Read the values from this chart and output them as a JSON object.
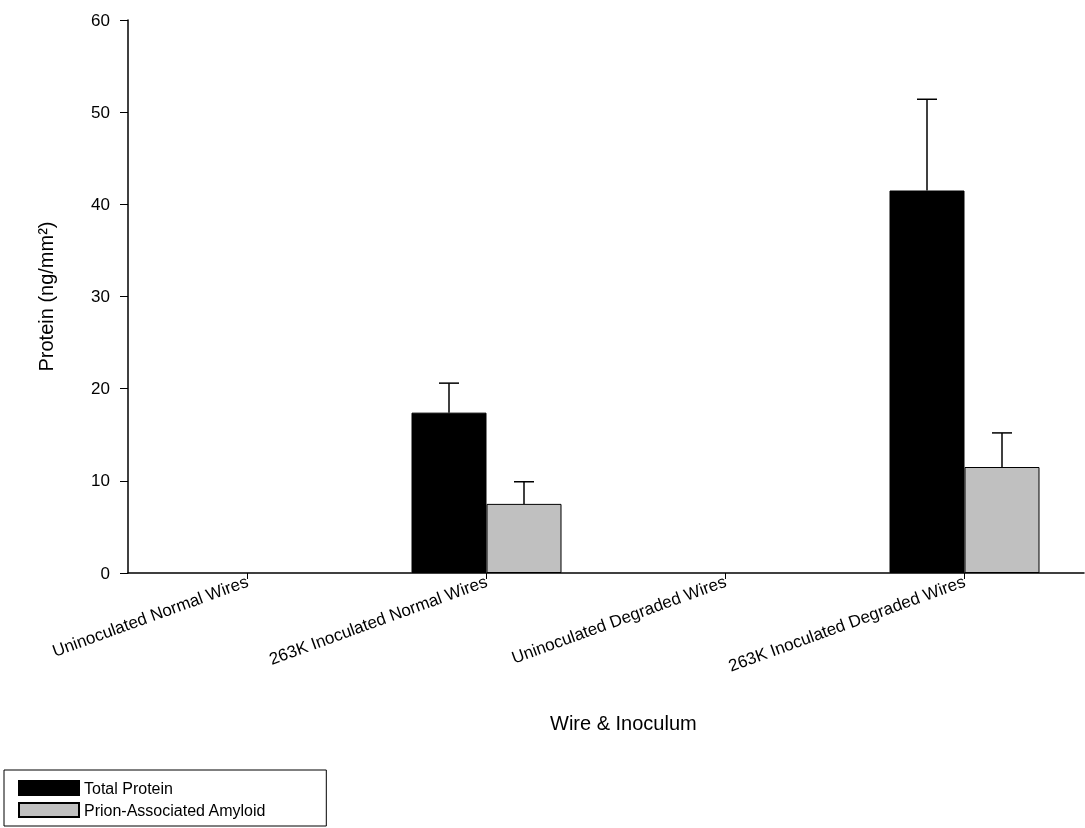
{
  "chart_data": {
    "type": "bar",
    "xlabel": "Wire & Inoculum",
    "ylabel": "Protein (ng/mm²)",
    "categories": [
      "Uninoculated Normal Wires",
      "263K Inoculated Normal Wires",
      "Uninoculated Degraded Wires",
      "263K Inoculated Degraded Wires"
    ],
    "series": [
      {
        "name": "Total Protein",
        "color": "#000000",
        "values": [
          0,
          17.4,
          0,
          41.5
        ],
        "errors": [
          null,
          3.2,
          null,
          9.9
        ]
      },
      {
        "name": "Prion-Associated Amyloid",
        "color": "#c0c0c0",
        "values": [
          0,
          7.5,
          0,
          11.5
        ],
        "errors": [
          null,
          2.4,
          null,
          3.7
        ]
      }
    ],
    "ylim": [
      0,
      60
    ],
    "yticks": [
      0,
      10,
      20,
      30,
      40,
      50,
      60
    ],
    "grid": false,
    "legend": "bottom left"
  }
}
